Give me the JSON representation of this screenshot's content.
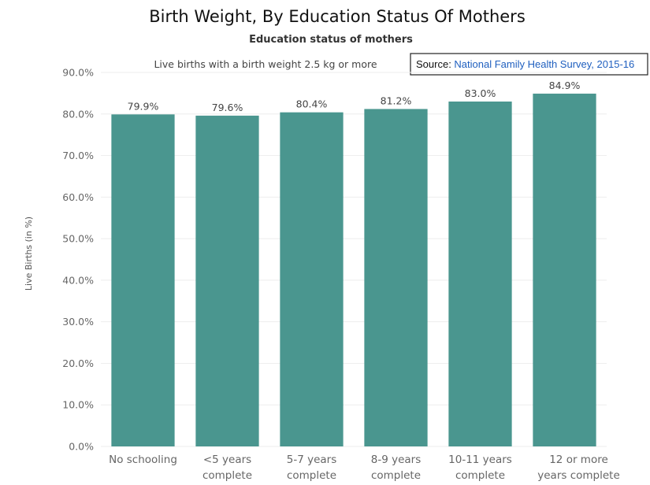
{
  "chart_data": {
    "type": "bar",
    "title": "Birth Weight, By Education Status Of Mothers",
    "subtitle": "Education status of mothers",
    "series_label": "Live births with a birth weight 2.5 kg or more",
    "ylabel": "Live Births (in %)",
    "xlabel": "",
    "ylim": [
      0,
      90
    ],
    "yticks": [
      0,
      10,
      20,
      30,
      40,
      50,
      60,
      70,
      80,
      90
    ],
    "ytick_labels": [
      "0.0%",
      "10.0%",
      "20.0%",
      "30.0%",
      "40.0%",
      "50.0%",
      "60.0%",
      "70.0%",
      "80.0%",
      "90.0%"
    ],
    "categories": [
      [
        "No schooling"
      ],
      [
        "<5 years",
        "complete"
      ],
      [
        "5-7 years",
        "complete"
      ],
      [
        "8-9 years",
        "complete"
      ],
      [
        "10-11 years",
        "complete"
      ],
      [
        "12 or more",
        "years complete"
      ]
    ],
    "values": [
      79.9,
      79.6,
      80.4,
      81.2,
      83.0,
      84.9
    ],
    "value_labels": [
      "79.9%",
      "79.6%",
      "80.4%",
      "81.2%",
      "83.0%",
      "84.9%"
    ],
    "bar_color": "#4a968f",
    "grid": true
  },
  "source": {
    "label": "Source: ",
    "link_text": "National Family Health Survey, 2015-16"
  }
}
